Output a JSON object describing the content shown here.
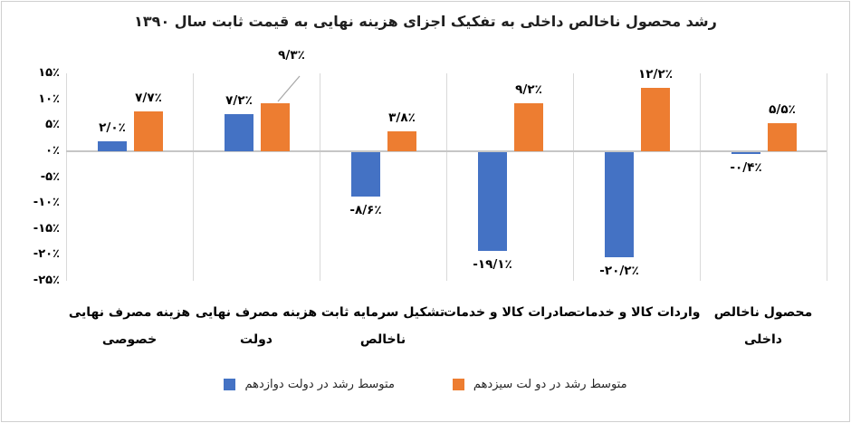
{
  "title": "رشد محصول ناخالص داخلی به تفکیک اجزای هزینه نهایی به قیمت ثابت سال ۱۳۹۰",
  "colors": {
    "series_blue": "#4472C4",
    "series_orange": "#ED7D31",
    "gridline": "#D9D9D9",
    "zero_axis": "#C6C6C6",
    "callout_line": "#A6A6A6"
  },
  "y_axis": {
    "tick_labels": [
      "۱۵٪",
      "۱۰٪",
      "۵٪",
      "۰٪",
      "-۵٪",
      "-۱۰٪",
      "-۱۵٪",
      "-۲۰٪",
      "-۲۵٪"
    ],
    "tick_values": [
      15,
      10,
      5,
      0,
      -5,
      -10,
      -15,
      -20,
      -25
    ]
  },
  "chart_data": {
    "type": "bar",
    "title": "رشد محصول ناخالص داخلی به تفکیک اجزای هزینه نهایی به قیمت ثابت سال ۱۳۹۰",
    "xlabel": "",
    "ylabel": "",
    "ylim": [
      -25,
      15
    ],
    "grid": "vertical-category-separators",
    "legend_position": "bottom",
    "categories": [
      "هزینه مصرف نهایی خصوصی",
      "هزینه مصرف نهایی دولت",
      "تشکیل سرمایه ثابت ناخالص",
      "صادرات کالا و خدمات",
      "واردات کالا و خدمات",
      "محصول ناخالص داخلی"
    ],
    "categories_lines": [
      [
        "هزینه مصرف نهایی",
        "خصوصی"
      ],
      [
        "هزینه مصرف نهایی",
        "دولت"
      ],
      [
        "تشکیل سرمایه ثابت",
        "ناخالص"
      ],
      [
        "صادرات کالا و خدمات"
      ],
      [
        "واردات کالا و خدمات"
      ],
      [
        "محصول ناخالص",
        "داخلی"
      ]
    ],
    "series": [
      {
        "name": "متوسط رشد در دولت دوازدهم",
        "color": "#4472C4",
        "values": [
          2.0,
          7.2,
          -8.6,
          -19.1,
          -20.2,
          -0.4
        ],
        "point_labels": [
          "۲/۰٪",
          "۷/۲٪",
          "-۸/۶٪",
          "-۱۹/۱٪",
          "-۲۰/۲٪",
          "-۰/۴٪"
        ]
      },
      {
        "name": "متوسط رشد در دو لت سیزدهم",
        "color": "#ED7D31",
        "values": [
          7.7,
          9.3,
          3.8,
          9.2,
          12.2,
          5.5
        ],
        "point_labels": [
          "۷/۷٪",
          "۹/۳٪",
          "۳/۸٪",
          "۹/۲٪",
          "۱۲/۲٪",
          "۵/۵٪"
        ]
      }
    ]
  }
}
